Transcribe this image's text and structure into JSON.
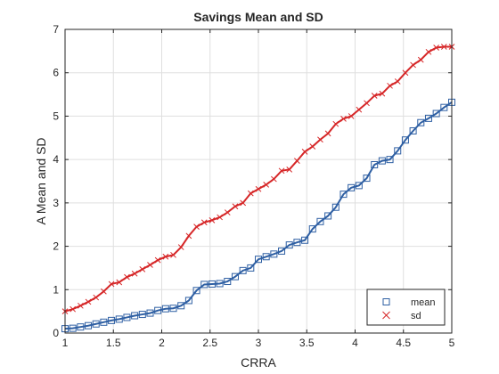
{
  "chart_data": {
    "type": "line",
    "title": "Savings Mean and SD",
    "xlabel": "CRRA",
    "ylabel": "A Mean and SD",
    "xlim": [
      1,
      5
    ],
    "ylim": [
      0,
      7
    ],
    "xticks": [
      1,
      1.5,
      2,
      2.5,
      3,
      3.5,
      4,
      4.5,
      5
    ],
    "xtick_labels": [
      "1",
      "1.5",
      "2",
      "2.5",
      "3",
      "3.5",
      "4",
      "4.5",
      "5"
    ],
    "yticks": [
      0,
      1,
      2,
      3,
      4,
      5,
      6,
      7
    ],
    "ytick_labels": [
      "0",
      "1",
      "2",
      "3",
      "4",
      "5",
      "6",
      "7"
    ],
    "grid": true,
    "legend_position": "bottom-right",
    "x": [
      1.0,
      1.08,
      1.16,
      1.24,
      1.32,
      1.4,
      1.48,
      1.56,
      1.64,
      1.72,
      1.8,
      1.88,
      1.96,
      2.04,
      2.12,
      2.2,
      2.28,
      2.36,
      2.44,
      2.52,
      2.6,
      2.68,
      2.76,
      2.84,
      2.92,
      3.0,
      3.08,
      3.16,
      3.24,
      3.32,
      3.4,
      3.48,
      3.56,
      3.64,
      3.72,
      3.8,
      3.88,
      3.96,
      4.04,
      4.12,
      4.2,
      4.28,
      4.36,
      4.44,
      4.52,
      4.6,
      4.68,
      4.76,
      4.84,
      4.92,
      5.0
    ],
    "series": [
      {
        "name": "mean",
        "color": "#2e5fa3",
        "marker": "square",
        "values": [
          0.1,
          0.11,
          0.14,
          0.17,
          0.21,
          0.25,
          0.29,
          0.32,
          0.36,
          0.4,
          0.43,
          0.46,
          0.52,
          0.56,
          0.57,
          0.63,
          0.75,
          0.98,
          1.12,
          1.13,
          1.14,
          1.19,
          1.3,
          1.44,
          1.5,
          1.7,
          1.76,
          1.82,
          1.89,
          2.03,
          2.09,
          2.14,
          2.4,
          2.57,
          2.7,
          2.9,
          3.2,
          3.35,
          3.4,
          3.57,
          3.88,
          3.97,
          4.0,
          4.2,
          4.45,
          4.66,
          4.85,
          4.95,
          5.06,
          5.2,
          5.32
        ]
      },
      {
        "name": "sd",
        "color": "#d62728",
        "marker": "x",
        "values": [
          0.5,
          0.55,
          0.63,
          0.72,
          0.82,
          0.96,
          1.13,
          1.17,
          1.29,
          1.37,
          1.47,
          1.57,
          1.68,
          1.76,
          1.8,
          1.98,
          2.24,
          2.45,
          2.55,
          2.6,
          2.67,
          2.78,
          2.92,
          3.0,
          3.22,
          3.32,
          3.42,
          3.55,
          3.74,
          3.77,
          3.97,
          4.18,
          4.3,
          4.46,
          4.6,
          4.82,
          4.94,
          5.0,
          5.15,
          5.3,
          5.47,
          5.52,
          5.7,
          5.8,
          6.0,
          6.18,
          6.3,
          6.48,
          6.58,
          6.6,
          6.6
        ]
      }
    ]
  }
}
